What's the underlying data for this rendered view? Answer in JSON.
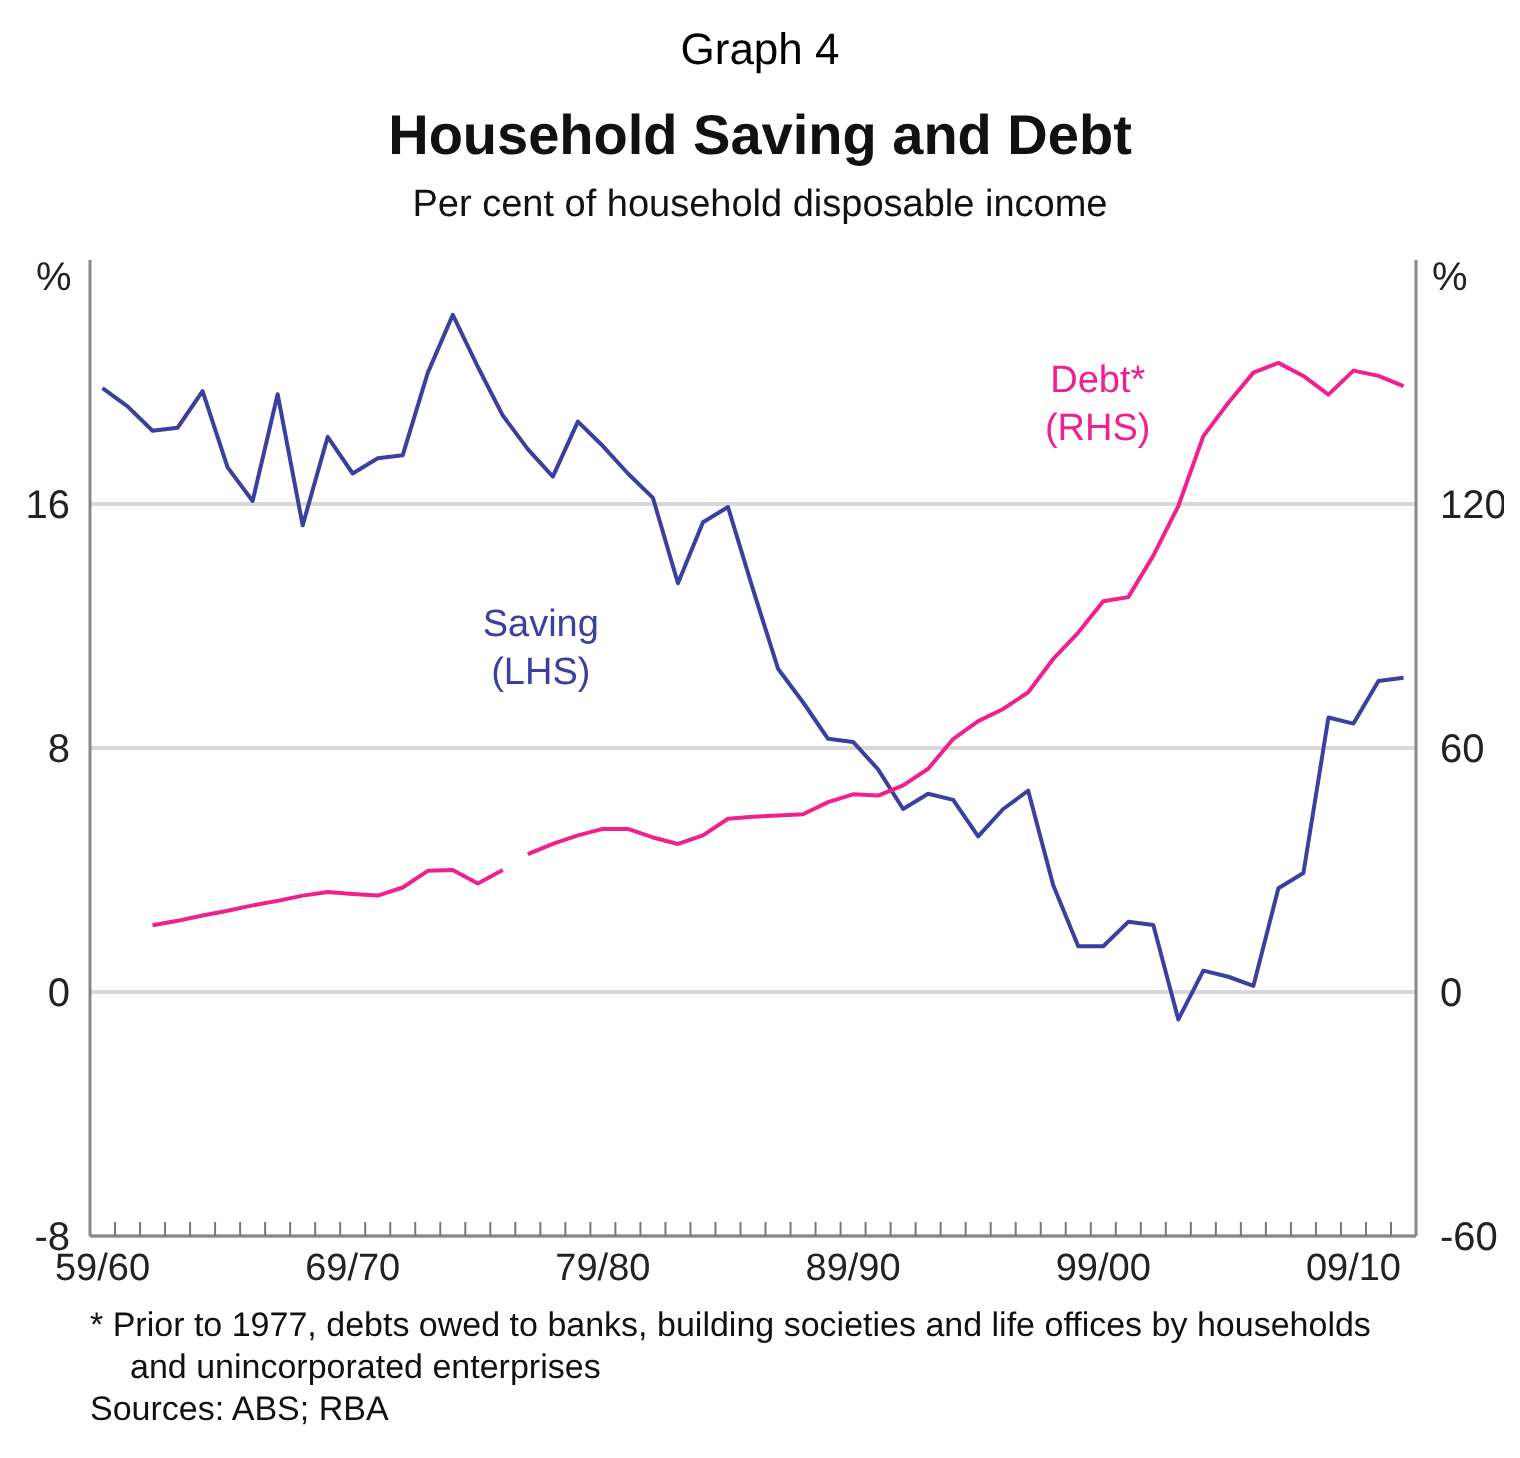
{
  "chart_data": {
    "type": "line",
    "title": "Household Saving and Debt",
    "subtitle": "Per cent of household disposable income",
    "ylabel": "%",
    "y2label": "%",
    "annotations": [
      "Graph 4",
      "* Prior to 1977, debts owed to banks, building societies and life offices by households and unincorporated enterprises",
      "Sources: ABS; RBA"
    ],
    "categories": [
      "59/60",
      null,
      null,
      null,
      null,
      null,
      null,
      null,
      null,
      null,
      "69/70",
      null,
      null,
      null,
      null,
      null,
      null,
      null,
      null,
      null,
      "79/80",
      null,
      null,
      null,
      null,
      null,
      null,
      null,
      null,
      null,
      "89/90",
      null,
      null,
      null,
      null,
      null,
      null,
      null,
      null,
      null,
      "99/00",
      null,
      null,
      null,
      null,
      null,
      null,
      null,
      null,
      null,
      "09/10",
      null,
      null
    ],
    "series": [
      {
        "name": "Saving (LHS)",
        "color": "#3b3f9f",
        "axis": "y",
        "values": [
          19.8,
          19.2,
          18.4,
          18.5,
          19.7,
          17.2,
          16.1,
          19.6,
          15.3,
          18.2,
          17.0,
          17.5,
          17.6,
          20.3,
          22.2,
          20.5,
          18.9,
          17.8,
          16.9,
          18.7,
          17.9,
          17.0,
          16.2,
          13.4,
          15.4,
          15.9,
          13.2,
          10.6,
          9.5,
          8.3,
          8.2,
          7.3,
          6.0,
          6.5,
          6.3,
          5.1,
          6.0,
          6.6,
          3.5,
          1.5,
          1.5,
          2.3,
          2.2,
          -0.9,
          0.7,
          0.5,
          0.2,
          3.4,
          3.9,
          9.0,
          8.8,
          10.2,
          10.3
        ]
      },
      {
        "color": "#f0218f",
        "axis": "y2",
        "values": [
          null,
          null,
          16.4,
          17.5,
          18.8,
          20.0,
          21.3,
          22.4,
          23.7,
          24.6,
          24.1,
          23.7,
          25.7,
          29.8,
          30.0,
          26.7,
          30.0,
          null,
          null,
          null,
          null,
          null,
          null,
          null,
          null,
          null,
          null,
          null,
          null,
          null,
          null,
          null,
          null,
          null,
          null,
          null,
          null,
          null,
          null,
          null,
          null,
          null,
          null,
          null,
          null,
          null,
          null,
          null,
          null,
          null,
          null,
          null,
          null
        ]
      },
      {
        "name": "Debt* (RHS)",
        "color": "#f0218f",
        "axis": "y2",
        "values": [
          null,
          null,
          null,
          null,
          null,
          null,
          null,
          null,
          null,
          null,
          null,
          null,
          null,
          null,
          null,
          null,
          null,
          33.9,
          36.4,
          38.5,
          40.1,
          40.1,
          38.0,
          36.4,
          38.5,
          42.6,
          43.1,
          43.4,
          43.7,
          46.7,
          48.6,
          48.3,
          50.8,
          54.9,
          62.2,
          66.6,
          69.6,
          73.7,
          81.9,
          88.4,
          96.1,
          97.1,
          107.3,
          119.5,
          136.7,
          144.9,
          152.3,
          154.7,
          151.5,
          146.9,
          152.8,
          151.5,
          149.0
        ]
      }
    ],
    "ylim": [
      -8,
      24
    ],
    "yticks": [
      -8,
      0,
      8,
      16
    ],
    "y2lim": [
      -60,
      180
    ],
    "y2ticks": [
      -60,
      0,
      60,
      120
    ],
    "grid": "y",
    "marker": "none"
  }
}
